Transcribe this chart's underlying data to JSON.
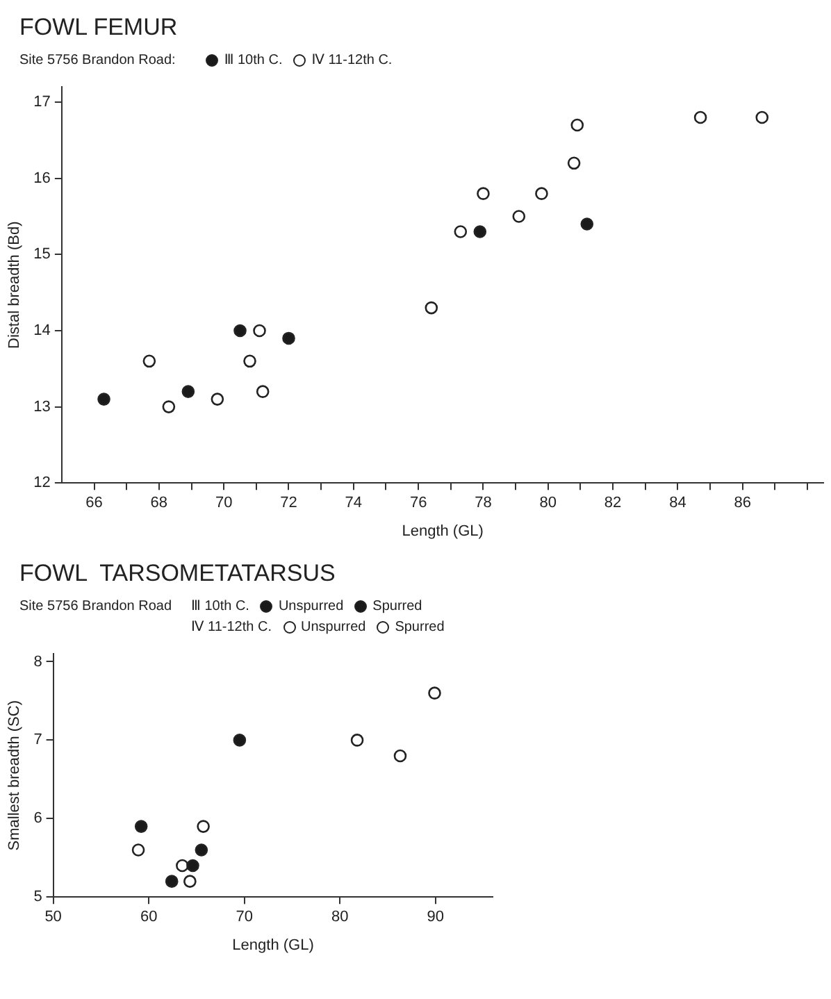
{
  "chart_data": [
    {
      "type": "scatter",
      "title": "FOWL FEMUR",
      "legend_title": "Site 5756 Brandon Road:",
      "xlabel": "Length (GL)",
      "ylabel": "Distal breadth (Bd)",
      "legend": "top",
      "marker": "circle",
      "grid": false,
      "xlim": [
        65,
        88.5
      ],
      "xticks": [
        66,
        {
          "value": 67,
          "label": null
        },
        68,
        {
          "value": 69,
          "label": null
        },
        70,
        {
          "value": 71,
          "label": null
        },
        72,
        {
          "value": 73,
          "label": null
        },
        74,
        {
          "value": 75,
          "label": null
        },
        76,
        {
          "value": 77,
          "label": null
        },
        78,
        {
          "value": 79,
          "label": null
        },
        80,
        {
          "value": 81,
          "label": null
        },
        82,
        {
          "value": 83,
          "label": null
        },
        84,
        {
          "value": 85,
          "label": null
        },
        86,
        {
          "value": 87,
          "label": null
        },
        {
          "value": 88,
          "label": null
        }
      ],
      "ylim": [
        12,
        17.2
      ],
      "yticks": [
        12,
        13,
        14,
        15,
        16,
        17
      ],
      "series": [
        {
          "name": "Ⅲ 10th C.",
          "color": "#1a1a1a",
          "x": [
            66.3,
            68.9,
            70.5,
            72.0,
            77.9,
            81.2
          ],
          "values": [
            13.1,
            13.2,
            14.0,
            13.9,
            15.3,
            15.4
          ]
        },
        {
          "name": "Ⅳ 11-12th C.",
          "color": "#ffffff",
          "x": [
            67.7,
            68.3,
            69.8,
            71.1,
            70.8,
            71.2,
            76.4,
            77.3,
            78.0,
            79.1,
            79.8,
            80.8,
            80.9,
            84.7,
            86.6
          ],
          "values": [
            13.6,
            13.0,
            13.1,
            14.0,
            13.6,
            13.2,
            14.3,
            15.3,
            15.8,
            15.5,
            15.8,
            16.2,
            16.7,
            16.8,
            16.8
          ]
        }
      ]
    },
    {
      "type": "scatter",
      "title": "FOWL  TARSOMETATARSUS",
      "legend_title": "Site 5756 Brandon Road",
      "xlabel": "Length (GL)",
      "ylabel": "Smallest breadth (SC)",
      "legend": "top",
      "marker": "circle",
      "grid": false,
      "annotations": [
        "Ⅲ 10th C.",
        "Ⅳ 11-12th C."
      ],
      "xlim": [
        50,
        96
      ],
      "xticks": [
        50,
        60,
        70,
        80,
        90
      ],
      "ylim": [
        5,
        8.1
      ],
      "yticks": [
        5,
        6,
        7,
        8
      ],
      "series": [
        {
          "name": "Unspurred",
          "color": "#1a1a1a",
          "x": [
            59.2,
            65.5,
            64.6,
            62.4
          ],
          "values": [
            5.9,
            5.6,
            5.4,
            5.2
          ]
        },
        {
          "name": "Spurred",
          "color": "#1a1a1a",
          "x": [
            69.5
          ],
          "values": [
            7.0
          ]
        },
        {
          "name": "Unspurred",
          "color": "#ffffff",
          "x": [
            58.9,
            65.7,
            63.5,
            64.3
          ],
          "values": [
            5.6,
            5.9,
            5.4,
            5.2
          ]
        },
        {
          "name": "Spurred",
          "color": "#ffffff",
          "x": [
            81.8,
            86.3,
            89.9
          ],
          "values": [
            7.0,
            6.8,
            7.6
          ]
        }
      ]
    }
  ]
}
